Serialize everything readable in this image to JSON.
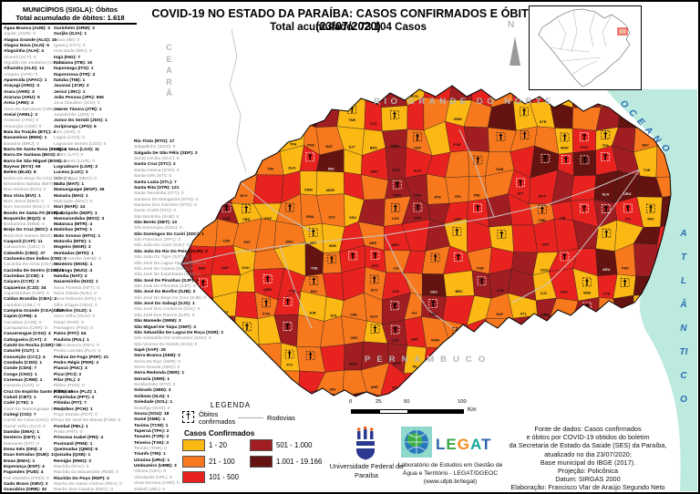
{
  "sidebar": {
    "title": "MUNICÍPIOS (SIGLA): Óbitos",
    "subtitle": "Total acumulado de óbitos: 1.618",
    "col1": [
      "Água Branca (AUB): 2",
      "Aguiar (AGR): 0",
      "Alagoa Grande (ALG): 16",
      "Alagoa Nova (ALN): 6",
      "Alagoinha (ALH): 4",
      "Alcantil (ACT): 0",
      "Algodão De Jandaíra (AJR): 0",
      "Alhandra (ALD): 14",
      "Amparo (APR): 0",
      "Aparecida (APAC): 1",
      "Araçagi (ARG): 3",
      "Arara (ARR): 3",
      "Araruna (ARU): 5",
      "Areia (ARE): 2",
      "Areia De Baraúnas (ABN): 0",
      "Areial (AREL): 2",
      "Aroeiras (ARS): 0",
      "Assunção (ASS): 0",
      "Baía Da Traição (BTÇ): 4",
      "Bananeiras (BNN): 1",
      "Baraúna (BRU): 0",
      "Barra De Santa Rosa (BSR): 1",
      "Barra De Santana (BDS): 2",
      "Barra De São Miguel (BSM): 1",
      "Bayeux (BYX): 69",
      "Belém (BLM): 8",
      "Belém Do Brejo Do Cruz (BBC): 0",
      "Bernardino Batista (BBT): 0",
      "Boa Ventura (BVA): 0",
      "Boa Vista (BVI): 1",
      "Bom Jesus (BMJ): 0",
      "Bom Sucesso (BSC): 0",
      "Bonito De Santa Fé (BSF): 1",
      "Boqueirão (BQO): 4",
      "Borborema (BBM): 0",
      "Brejo Do Cruz (BDC): 4",
      "Brejo Dos Santos (BDS): 0",
      "Caaporã (CAP): 11",
      "Cabaceiras (CBC): 0",
      "Cabedelo (CBD): 37",
      "Cachoeira Dos Índios (CDI): 3",
      "Cacimba De Areia (CDA): 0",
      "Cacimba De Dentro (CDD): 1",
      "Cacimbas (CCB): 1",
      "Caiçara (CCR): 3",
      "Cajazeiras (CJZ): 34",
      "Cajazeirinhas (CZR): 0",
      "Caldas Brandão (CBA): 2",
      "Camalaú (CML): 0",
      "Campina Grande (CGA): 217",
      "Capim (CPM): 4",
      "Caraúbas (CUB): 0",
      "Carrapateira (CRR): 0",
      "Casserengue (CSG): 4",
      "Catingueira (CAT): 2",
      "Catolé Do Rocha (CDR): 18",
      "Caturité (CUT): 1",
      "Conceição (CCÇ): 4",
      "Condado (CDD): 1",
      "Conde (CDN): 7",
      "Congo (CNG): 1",
      "Coremas (CRM): 1",
      "Coxixola (CXX): 0",
      "Cruz Do Espírito Santo (CES): 16",
      "Cubati (CBT): 1",
      "Cuité (CTE): 1",
      "Cuité De Mamanguape (CDM): 0",
      "Cuitegi (CIG): 7",
      "Curral De Cima (CDC): 0",
      "Curral Velho (CLV): 0",
      "Damião (DMA): 1",
      "Desterro (DET): 1",
      "Diamante (DIT): 0",
      "Dona Inês (DIN): 2",
      "Duas Estradas (DUE): 1",
      "Emas (EMA): 1",
      "Esperança (ESP): 4",
      "Fagundes (FUD): 4",
      "Frei Martinho (FMO): 0",
      "Gado Bravo (GBV): 2",
      "Guarabira (GRB): 33"
    ],
    "col2": [
      "Gurinhém (GRM): 3",
      "Gurjão (GJA): 1",
      "Ibiara (IBI): 0",
      "Igaracy (IGY): 0",
      "Imaculada (IMC): 0",
      "Ingá (ING): 7",
      "Itabaiana (ITB): 16",
      "Itaporanga (ITG): 1",
      "Itapororoca (ITR): 4",
      "Itatuba (TIB): 1",
      "Jacaraú (JCR): 2",
      "Jericó (JRC): 1",
      "João Pessoa (JPA): 556",
      "Joca Claudino (JCD): 0",
      "Juarez Távora (JTR): 1",
      "Juazeirinho (JZN): 0",
      "Junco Do Seridó (JDS): 1",
      "Juripiranga (JPG): 6",
      "Juru (JUR): 0",
      "Lagoa (LGO): 0",
      "Lagoa De Dentro (LDO): 0",
      "Lagoa Seca (LGS): 11",
      "Lastro (LAT): 0",
      "Livramento (LIVR): 0",
      "Logradouro (LGR): 2",
      "Lucena (LUC): 3",
      "Mãe D'água (MDA): 0",
      "Malta (MAT): 1",
      "Mamanguape (MGP): 36",
      "Manaíra (MAI): 1",
      "Marcação (MAC): 0",
      "Mari (MAR): 14",
      "Marizópolis (MZP): 1",
      "Massaranduba (MSS): 3",
      "Mataraca (MTR): 4",
      "Matinhas (MTH): 1",
      "Mato Grosso (MTG): 1",
      "Maturéia (MTE): 1",
      "Mogeiro (MGR): 2",
      "Montadas (MTD): 1",
      "Monte Horebe (MHB): 0",
      "Monteiro (MON): 1",
      "Mulungu (MUG): 4",
      "Natuba (NAT): 2",
      "Nazarezinho (NZZ): 1",
      "Nova Floresta (NFT): 0",
      "Nova Olinda (NOL): 0",
      "Nova Palmeira (NPL): 0",
      "Olho D'água (ODA): 0",
      "Olivedos (OLD): 1",
      "Ouro Velho (OUV): 0",
      "Parari (PAR): 0",
      "Passagem (PSS): 0",
      "Patos (PAT): 64",
      "Paulista (PUL): 1",
      "Pedra Branca (PBA): 0",
      "Pedra Lavrada (PLA): 0",
      "Pedras De Fogo (PDF): 21",
      "Pedro Régis (PDR): 2",
      "Piancó (PNC): 3",
      "Picuí (PCI): 2",
      "Pilar (PIL): 3",
      "Pilões (POS): 0",
      "Pilõezinhos (PLZ): 1",
      "Pirpirituba (PPT): 2",
      "Pitimbu (PIT): 7",
      "Pocinhos (PCH): 1",
      "Poço Dantas (PDT): 0",
      "Poço De José De Moura (PJM): 0",
      "Pombal (PBL): 1",
      "Prata (PRT): 0",
      "Princesa Isabel (PRI): 4",
      "Puxinanã (PNN): 1",
      "Queimadas (QMD): 6",
      "Quixaba (QXB): 1",
      "Remígio (RMG): 3",
      "Riachão (RAC): 0",
      "Riachão Do Bacamarte (RDB): 0",
      "Riachão Do Poço (RDP): 2",
      "Riacho De Santo Antônio (RSA): 0",
      "Riacho Dos Cavalos (RDC): 0"
    ],
    "col3": [
      "Rio Tinto (RTO): 17",
      "Salgadinho (SGO): 0",
      "Salgado De São Félix (SDF): 2",
      "Santa Cecília (SCC): 0",
      "Santa Cruz (STC): 2",
      "Santa Helena (STH): 0",
      "Santa Inês (STI): 0",
      "Santa Luzia (STL): 7",
      "Santa Rita (STR): 121",
      "Santa Teresinha (STT): 0",
      "Santana De Mangueira (STN): 0",
      "Santana Dos Garrotes (STG): 0",
      "Santo André (STA): 0",
      "São Bentinho (SAB): 0",
      "São Bento (SBT): 13",
      "São Domingos (SDG): 0",
      "São Domingos Do Cariri (SDC): 1",
      "São Francisco (SFC): 0",
      "São João Do Cariri (SJC): 0",
      "São João Do Rio Do Peixe (SJR): 2",
      "São João Do Tigre (SJT): 0",
      "São José Da Lagoa Tapada (SJL): 0",
      "São José De Caiana (SJC): 0",
      "São José De Espinharas (SJE): 0",
      "São José De Piranhas (SJP): 1",
      "São José De Princesa (SJP): 0",
      "São José Do Bonfim (SJB): 2",
      "São José Do Brejo Do Cruz (SJB): 0",
      "São José Do Sabugi (SJS): 1",
      "São José Dos Cordeiros (SJC): 0",
      "São José Dos Ramos (SJR): 0",
      "São Mamede (SMM): 3",
      "São Miguel De Taipu (SMT): 2",
      "São Sebastião De Lagoa De Roça (SSR): 2",
      "São Sebastião De Umbuzeiro (SSU): 0",
      "São Vicente Do Seridó (SVS): 0",
      "Sapé (SAP): 25",
      "Serra Branca (SEB): 2",
      "Serra Da Raiz (SDR): 0",
      "Serra Grande (SRG): 0",
      "Serra Redonda (SER): 1",
      "Serraria (SRR): 1",
      "Sertãozinho (STZ): 0",
      "Sobrado (SBD): 3",
      "Solânea (SLN): 1",
      "Soledade (SOL): 1",
      "Sossêgo (SOS): 0",
      "Sousa (SOU): 18",
      "Sumé (SME): 1",
      "Tacima (TCM): 1",
      "Taperoá (TPA): 2",
      "Tavares (TVR): 2",
      "Teixeira (TXE): 3",
      "Tenório (TNR): 0",
      "Triunfo (TRI): 1",
      "Uiraúna (URU): 1",
      "Umbuzeiro (UMB): 3",
      "Várzea (VZA): 0",
      "Vieirópolis (VPL): 0",
      "Vista Serrana (VSR): 0",
      "Zabelê (ZBL): 0"
    ]
  },
  "header": {
    "title_line1": "COVID-19 NO ESTADO DA PARAÍBA: CASOS CONFIRMADOS E  ÓBITOS (23/07/2020)",
    "title_line2": "Total acumulado: 73.104 Casos"
  },
  "map": {
    "neighbors": {
      "ceara": "CEARÁ",
      "rio_grande_do_norte": "RIO GRANDE DO NORTE",
      "pernambuco": "PERNAMBUCO"
    },
    "ocean": {
      "word1": "OCEANO",
      "word2": "ATLÂNTICO",
      "color": "#bdeade"
    },
    "north": "N",
    "class_colors": [
      "#FDB913",
      "#F8791D",
      "#E8231F",
      "#A01D21",
      "#651310"
    ],
    "inset_highlight_color": "#e8392f",
    "siglas": [
      "PJM",
      "VPL",
      "LAS",
      "BBC",
      "RDC",
      "JPL",
      "SJL",
      "PBL",
      "VSR",
      "CDR",
      "SAB",
      "CZR",
      "SAP",
      "CAT",
      "IGY",
      "STL",
      "CGA",
      "JPA",
      "STR",
      "BYX",
      "CBD",
      "PAT",
      "SOU",
      "CJZ",
      "GRB",
      "MGP",
      "ITB",
      "ESP",
      "QMD",
      "PCH",
      "SME",
      "MON",
      "PRI",
      "TPA",
      "SLN",
      "ARU",
      "CTE",
      "PCI",
      "SBT",
      "URU",
      "ITG",
      "PNC",
      "CRM",
      "EMA",
      "DET",
      "TXE",
      "MAI",
      "JUR",
      "UMB",
      "NAT",
      "ING",
      "MGR",
      "SJC",
      "SEB",
      "SOL",
      "JZN",
      "ASS",
      "TNR",
      "SJT",
      "SSU",
      "CML",
      "CBC",
      "BQO",
      "CUT",
      "BDS",
      "GBV",
      "ARS",
      "STG",
      "SCC",
      "ALH",
      "ARE",
      "RMG",
      "MTD",
      "PNN",
      "LGS",
      "MSS",
      "ITR",
      "JCR",
      "LUC",
      "MTR",
      "BTÇ",
      "RTO",
      "CAP",
      "ALD",
      "CDN",
      "PDF",
      "PIT",
      "SMT",
      "PIL",
      "JPG",
      "CES",
      "SBD",
      "MAR",
      "CBA",
      "GRM"
    ]
  },
  "legend": {
    "title": "LEGENDA",
    "obitos_label": "Óbitos confirmados",
    "obitos_icon": "†",
    "rodovias_label": "Rodovias",
    "casos_label": "Casos Confirmados",
    "classes": [
      {
        "label": "1 - 20",
        "color": "#FDB913"
      },
      {
        "label": "21 - 100",
        "color": "#F8791D"
      },
      {
        "label": "101 - 500",
        "color": "#E8231F"
      },
      {
        "label": "501 - 1.000",
        "color": "#A01D21"
      },
      {
        "label": "1.001 - 19.166",
        "color": "#651310"
      }
    ]
  },
  "scalebar": {
    "ticks": [
      "0",
      "25",
      "50",
      "100"
    ],
    "unit": "Km"
  },
  "credits": {
    "ufpb_name": "Universidade Federal da Paraíba",
    "legat_logo_text": "LEGAT",
    "legat_name": "Laboratório de Estudos em Gestão de Água e Território - LEGAT/DGEOC (www.ufpb.br/legat)",
    "source_lines": [
      "Fonte de dados: Casos confirmados",
      "e óbitos por COVID-19 obtidos do boletim",
      "da Secretaria de Estado da Saúde (SES) da Paraíba,",
      "atualizado no dia 23/07/2020;",
      "Base municipal do IBGE (2017).",
      "Projeção: Policônica",
      "Datum: SIRGAS 2000",
      "Elaboração: Francisco Vlar de Araújo Segundo Neto"
    ]
  }
}
